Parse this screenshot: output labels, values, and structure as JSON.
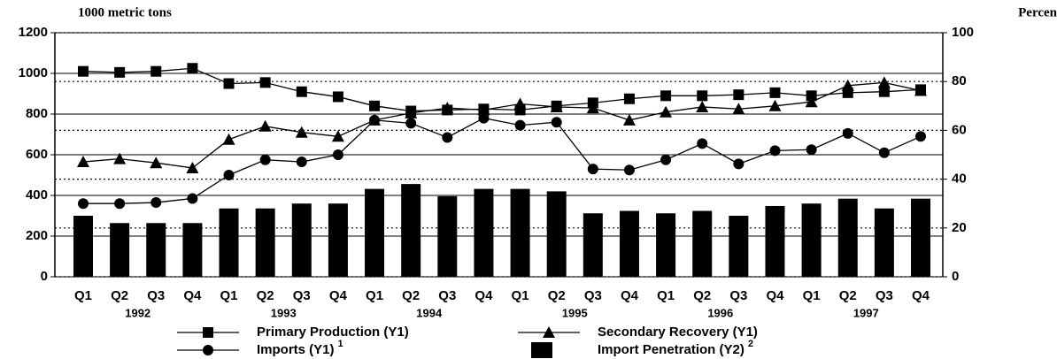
{
  "chart_data": {
    "type": "bar_line",
    "y_label": "1000 metric tons",
    "y2_label": "Percen",
    "categories": [
      "Q1",
      "Q2",
      "Q3",
      "Q4",
      "Q1",
      "Q2",
      "Q3",
      "Q4",
      "Q1",
      "Q2",
      "Q3",
      "Q4",
      "Q1",
      "Q2",
      "Q3",
      "Q4",
      "Q1",
      "Q2",
      "Q3",
      "Q4",
      "Q1",
      "Q2",
      "Q3",
      "Q4"
    ],
    "years": [
      "1992",
      "1993",
      "1994",
      "1995",
      "1996",
      "1997"
    ],
    "ylim": [
      0,
      1200
    ],
    "yticks": [
      0,
      200,
      400,
      600,
      800,
      1000,
      1200
    ],
    "y2lim": [
      0,
      100
    ],
    "y2ticks": [
      0,
      20,
      40,
      60,
      80,
      100
    ],
    "grid": true,
    "y2grid": true,
    "series": [
      {
        "name": "Primary Production (Y1)",
        "type": "line",
        "marker": "square",
        "color": "#000000",
        "values": [
          1010,
          1005,
          1010,
          1025,
          950,
          955,
          910,
          885,
          840,
          815,
          820,
          825,
          820,
          840,
          855,
          875,
          890,
          890,
          895,
          905,
          890,
          905,
          910,
          920
        ]
      },
      {
        "name": "Secondary Recovery (Y1)",
        "type": "line",
        "marker": "triangle",
        "color": "#000000",
        "values": [
          565,
          580,
          560,
          535,
          675,
          740,
          710,
          690,
          770,
          805,
          830,
          820,
          850,
          835,
          830,
          770,
          810,
          835,
          825,
          840,
          860,
          940,
          955,
          915
        ]
      },
      {
        "name": "Imports (Y1)",
        "footnote": "1",
        "type": "line",
        "marker": "circle",
        "color": "#000000",
        "values": [
          360,
          360,
          365,
          385,
          500,
          575,
          565,
          600,
          770,
          755,
          685,
          780,
          745,
          760,
          530,
          525,
          575,
          655,
          555,
          620,
          625,
          705,
          610,
          690
        ]
      },
      {
        "name": "Import Penetration (Y2)",
        "footnote": "2",
        "type": "bar",
        "axis": "y2",
        "color": "#000000",
        "values": [
          25,
          22,
          22,
          22,
          28,
          28,
          30,
          30,
          36,
          38,
          33,
          36,
          36,
          35,
          26,
          27,
          26,
          27,
          25,
          29,
          30,
          32,
          28,
          32
        ]
      }
    ]
  }
}
